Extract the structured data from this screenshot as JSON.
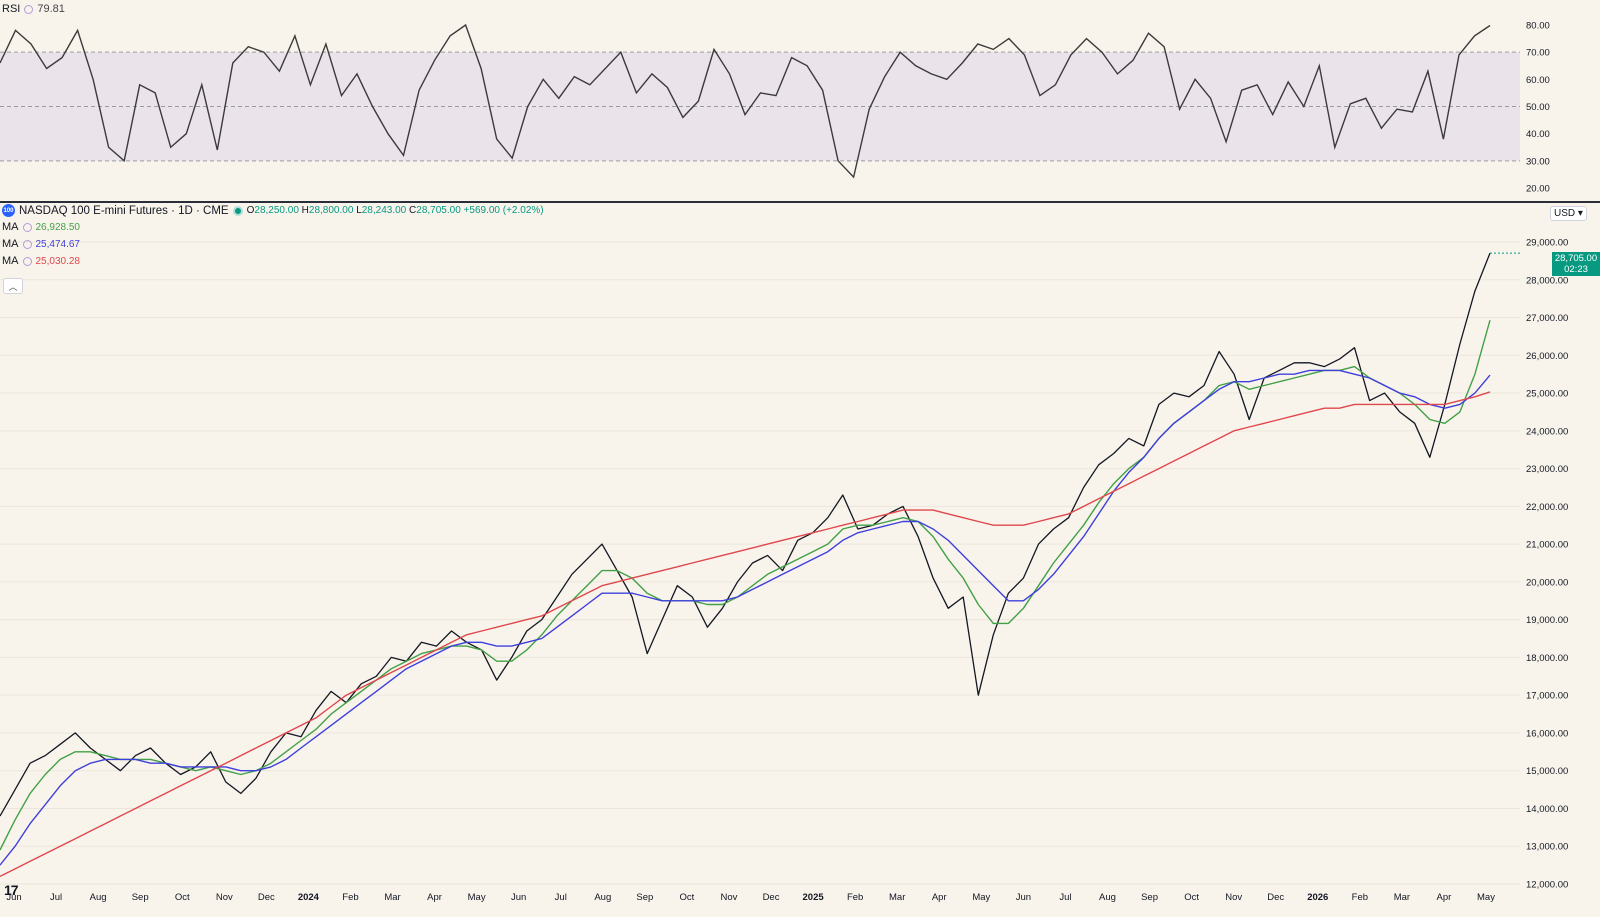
{
  "rsi": {
    "label": "RSI",
    "value": "79.81",
    "ticks": [
      "20.00",
      "30.00",
      "40.00",
      "50.00",
      "60.00",
      "70.00",
      "80.00"
    ],
    "band_lower": 30,
    "band_upper": 70,
    "mid": 50,
    "values": [
      66,
      78,
      73,
      64,
      68,
      78,
      60,
      35,
      30,
      58,
      55,
      35,
      40,
      58,
      34,
      66,
      72,
      70,
      63,
      76,
      58,
      73,
      54,
      62,
      50,
      40,
      32,
      56,
      67,
      76,
      80,
      64,
      38,
      31,
      50,
      60,
      53,
      61,
      58,
      64,
      70,
      55,
      62,
      57,
      46,
      52,
      71,
      62,
      47,
      55,
      54,
      68,
      65,
      56,
      30,
      24,
      49,
      61,
      70,
      65,
      62,
      60,
      66,
      73,
      71,
      75,
      69,
      54,
      58,
      69,
      75,
      70,
      62,
      67,
      77,
      72,
      49,
      60,
      53,
      37,
      56,
      58,
      47,
      59,
      50,
      65,
      35,
      51,
      53,
      42,
      49,
      48,
      63,
      38,
      69,
      76,
      79.81
    ]
  },
  "symbol": {
    "logo": "100",
    "name": "NASDAQ 100 E-mini Futures · 1D · CME",
    "o_key": "O",
    "o_val": "28,250.00",
    "h_key": "H",
    "h_val": "28,800.00",
    "l_key": "L",
    "l_val": "28,243.00",
    "c_key": "C",
    "c_val": "28,705.00",
    "change": "+569.00 (+2.02%)"
  },
  "ma": [
    {
      "label": "MA",
      "value": "26,928.50",
      "color": "#43a047"
    },
    {
      "label": "MA",
      "value": "25,474.67",
      "color": "#3f3fdb"
    },
    {
      "label": "MA",
      "value": "25,030.28",
      "color": "#e0474c"
    }
  ],
  "currency": "USD ▾",
  "last_price": {
    "value": "28,705.00",
    "timer": "02:23"
  },
  "collapse_icon": "chevron-up-icon",
  "tv_logo": "17",
  "colors": {
    "up": "#089981",
    "down": "#f23645",
    "background": "#f8f4ec"
  },
  "chart_data": {
    "type": "line",
    "title": "NASDAQ 100 E-mini Futures · 1D · CME",
    "xlabel": "",
    "ylabel": "",
    "ylim": [
      12000,
      29500
    ],
    "y_ticks": [
      "12,000.00",
      "13,000.00",
      "14,000.00",
      "15,000.00",
      "16,000.00",
      "17,000.00",
      "18,000.00",
      "19,000.00",
      "20,000.00",
      "21,000.00",
      "22,000.00",
      "23,000.00",
      "24,000.00",
      "25,000.00",
      "26,000.00",
      "27,000.00",
      "28,000.00",
      "29,000.00"
    ],
    "x_ticks": [
      "Jun",
      "Jul",
      "Aug",
      "Sep",
      "Oct",
      "Nov",
      "Dec",
      "2024",
      "Feb",
      "Mar",
      "Apr",
      "May",
      "Jun",
      "Jul",
      "Aug",
      "Sep",
      "Oct",
      "Nov",
      "Dec",
      "2025",
      "Feb",
      "Mar",
      "Apr",
      "May",
      "Jun",
      "Jul",
      "Aug",
      "Sep",
      "Oct",
      "Nov",
      "Dec",
      "2026",
      "Feb",
      "Mar",
      "Apr",
      "May"
    ],
    "series": [
      {
        "color": "#131722",
        "values": [
          13800,
          14500,
          15200,
          15400,
          15700,
          16000,
          15600,
          15300,
          15000,
          15400,
          15600,
          15200,
          14900,
          15100,
          15500,
          14700,
          14400,
          14800,
          15500,
          16000,
          15900,
          16600,
          17100,
          16800,
          17300,
          17500,
          18000,
          17900,
          18400,
          18300,
          18700,
          18400,
          18200,
          17400,
          18000,
          18700,
          19000,
          19600,
          20200,
          20600,
          21000,
          20300,
          19600,
          18100,
          19000,
          19900,
          19600,
          18800,
          19300,
          20000,
          20500,
          20700,
          20300,
          21100,
          21300,
          21700,
          22300,
          21400,
          21500,
          21800,
          22000,
          21200,
          20100,
          19300,
          19600,
          17000,
          18600,
          19700,
          20100,
          21000,
          21400,
          21700,
          22500,
          23100,
          23400,
          23800,
          23600,
          24700,
          25000,
          24900,
          25200,
          26100,
          25500,
          24300,
          25400,
          25600,
          25800,
          25800,
          25700,
          25900,
          26200,
          24800,
          25000,
          24500,
          24200,
          23300,
          24700,
          26300,
          27700,
          28705
        ]
      },
      {
        "name": "MA",
        "color": "#43a047",
        "values": [
          12900,
          13700,
          14400,
          14900,
          15300,
          15500,
          15500,
          15400,
          15300,
          15300,
          15300,
          15200,
          15100,
          15000,
          15100,
          15000,
          14900,
          15000,
          15200,
          15500,
          15800,
          16100,
          16500,
          16800,
          17100,
          17400,
          17700,
          17900,
          18100,
          18200,
          18300,
          18300,
          18200,
          17900,
          17900,
          18200,
          18600,
          19100,
          19500,
          19900,
          20300,
          20300,
          20100,
          19700,
          19500,
          19500,
          19500,
          19400,
          19400,
          19600,
          19900,
          20200,
          20400,
          20600,
          20800,
          21000,
          21400,
          21500,
          21500,
          21600,
          21700,
          21600,
          21200,
          20600,
          20100,
          19400,
          18900,
          18900,
          19300,
          19900,
          20500,
          21000,
          21500,
          22100,
          22600,
          23000,
          23300,
          23800,
          24200,
          24500,
          24800,
          25200,
          25300,
          25100,
          25200,
          25300,
          25400,
          25500,
          25600,
          25600,
          25700,
          25400,
          25200,
          25000,
          24700,
          24300,
          24200,
          24500,
          25500,
          26928.5
        ]
      },
      {
        "name": "MA",
        "color": "#3f3fdb",
        "values": [
          12500,
          13000,
          13600,
          14100,
          14600,
          15000,
          15200,
          15300,
          15300,
          15300,
          15200,
          15200,
          15100,
          15100,
          15100,
          15100,
          15000,
          15000,
          15100,
          15300,
          15600,
          15900,
          16200,
          16500,
          16800,
          17100,
          17400,
          17700,
          17900,
          18100,
          18300,
          18400,
          18400,
          18300,
          18300,
          18400,
          18500,
          18800,
          19100,
          19400,
          19700,
          19700,
          19700,
          19600,
          19500,
          19500,
          19500,
          19500,
          19500,
          19600,
          19800,
          20000,
          20200,
          20400,
          20600,
          20800,
          21100,
          21300,
          21400,
          21500,
          21600,
          21600,
          21400,
          21100,
          20700,
          20300,
          19900,
          19500,
          19500,
          19800,
          20200,
          20700,
          21200,
          21800,
          22400,
          22900,
          23300,
          23800,
          24200,
          24500,
          24800,
          25100,
          25300,
          25300,
          25400,
          25500,
          25500,
          25600,
          25600,
          25600,
          25500,
          25400,
          25200,
          25000,
          24900,
          24700,
          24600,
          24700,
          25000,
          25474.67
        ]
      },
      {
        "name": "MA",
        "color": "#e0474c",
        "values": [
          12200,
          12400,
          12600,
          12800,
          13000,
          13200,
          13400,
          13600,
          13800,
          14000,
          14200,
          14400,
          14600,
          14800,
          15000,
          15200,
          15400,
          15600,
          15800,
          16000,
          16200,
          16400,
          16700,
          17000,
          17200,
          17400,
          17600,
          17800,
          18000,
          18200,
          18400,
          18600,
          18700,
          18800,
          18900,
          19000,
          19100,
          19300,
          19500,
          19700,
          19900,
          20000,
          20100,
          20200,
          20300,
          20400,
          20500,
          20600,
          20700,
          20800,
          20900,
          21000,
          21100,
          21200,
          21300,
          21400,
          21500,
          21600,
          21700,
          21800,
          21900,
          21900,
          21900,
          21800,
          21700,
          21600,
          21500,
          21500,
          21500,
          21600,
          21700,
          21800,
          22000,
          22200,
          22400,
          22600,
          22800,
          23000,
          23200,
          23400,
          23600,
          23800,
          24000,
          24100,
          24200,
          24300,
          24400,
          24500,
          24600,
          24600,
          24700,
          24700,
          24700,
          24700,
          24700,
          24700,
          24700,
          24800,
          24900,
          25030.28
        ]
      }
    ]
  }
}
